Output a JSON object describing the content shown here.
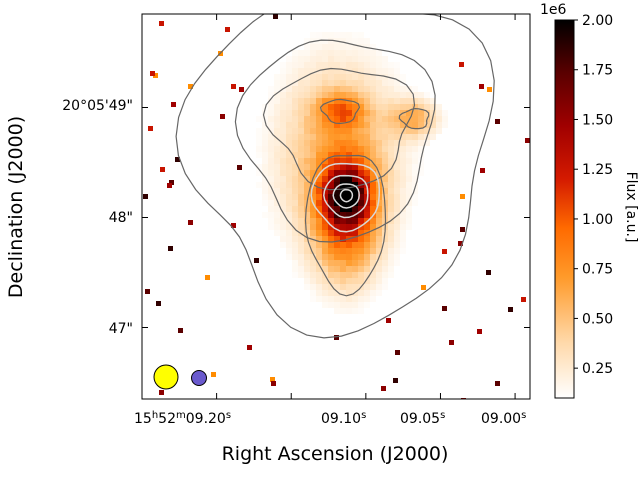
{
  "chart_data": {
    "type": "heatmap",
    "title": "",
    "xlabel": "Right Ascension (J2000)",
    "ylabel": "Declination (J2000)",
    "x_ticks": [
      {
        "value": 9.2,
        "h": "15",
        "m": "52",
        "s": "09.20",
        "su": "s",
        "has_hm": true
      },
      {
        "value": 9.15,
        "s": "",
        "su": "",
        "has_hm": false
      },
      {
        "value": 9.1,
        "s": "09.10",
        "su": "s",
        "has_hm": false
      },
      {
        "value": 9.05,
        "s": "09.05",
        "su": "s",
        "has_hm": false
      },
      {
        "value": 9.0,
        "s": "09.00",
        "su": "s",
        "has_hm": false
      }
    ],
    "x_tick_text": {
      "h": "15",
      "m": "52",
      "t09_20": "09.20",
      "t09_10": "09.10",
      "t09_05": "09.05",
      "t09_00": "09.00",
      "sup_h": "h",
      "sup_m": "m",
      "sup_s": "s"
    },
    "x_range_seconds": [
      9.25,
      8.99
    ],
    "y_ticks": [
      {
        "value": 49.0,
        "label": "20°05'49\""
      },
      {
        "value": 48.0,
        "label": "48\""
      },
      {
        "value": 47.0,
        "label": "47\""
      }
    ],
    "y_range_arcsec": [
      46.35,
      49.85
    ],
    "colorbar": {
      "label": "Flux [a.u.]",
      "scale": "1e6",
      "colormap": "gist_heat_r",
      "range": [
        0.1,
        2.0
      ],
      "ticks": [
        "0.25",
        "0.50",
        "0.75",
        "1.00",
        "1.25",
        "1.50",
        "1.75",
        "2.00"
      ]
    },
    "emission_peaks": [
      {
        "name": "central-core",
        "ra_s": 9.113,
        "dec_s": 48.2,
        "flux_1e6": 1.3
      },
      {
        "name": "north-knot-west",
        "ra_s": 9.117,
        "dec_s": 48.97,
        "flux_1e6": 1.05
      },
      {
        "name": "north-knot-east",
        "ra_s": 9.067,
        "dec_s": 48.9,
        "flux_1e6": 0.95
      }
    ],
    "contours": {
      "outer_color": "#666666",
      "inner_color": "#d8d8d8",
      "center_ra_s": 9.113,
      "center_dec_s": 48.2
    },
    "beams": [
      {
        "name": "beam-large",
        "color": "#ffff00"
      },
      {
        "name": "beam-small",
        "color": "#6a5acd"
      }
    ]
  }
}
